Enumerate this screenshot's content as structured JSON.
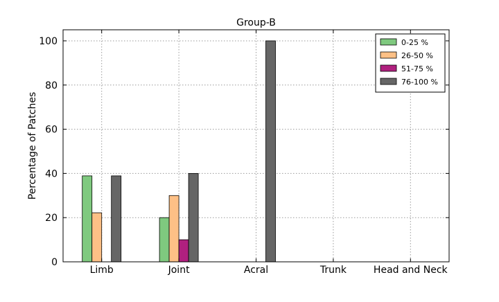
{
  "chart_data": {
    "type": "bar",
    "title": "Group-B",
    "xlabel": "",
    "ylabel": "Percentage of Patches",
    "categories": [
      "Limb",
      "Joint",
      "Acral",
      "Trunk",
      "Head and Neck"
    ],
    "series": [
      {
        "name": "0-25 %",
        "color": "#7fc97f",
        "values": [
          38.9,
          20,
          0,
          0,
          0
        ]
      },
      {
        "name": "26-50 %",
        "color": "#fdc086",
        "values": [
          22.2,
          30,
          0,
          0,
          0
        ]
      },
      {
        "name": "51-75 %",
        "color": "#b0207f",
        "values": [
          0,
          10,
          0,
          0,
          0
        ]
      },
      {
        "name": "76-100 %",
        "color": "#666666",
        "values": [
          38.9,
          40,
          100,
          0,
          0
        ]
      }
    ],
    "ylim": [
      0,
      105
    ],
    "yticks": [
      0,
      20,
      40,
      60,
      80,
      100
    ],
    "grid": true,
    "legend_position": "top-right"
  }
}
